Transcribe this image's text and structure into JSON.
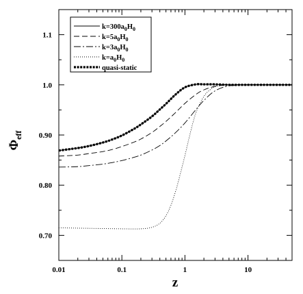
{
  "chart_data": {
    "type": "line",
    "title": "",
    "xlabel": "z",
    "ylabel": "Φ",
    "ylabel_sub": "eff",
    "xscale": "log",
    "xlim": [
      0.01,
      50
    ],
    "ylim": [
      0.65,
      1.15
    ],
    "grid": false,
    "legend_position": "top-left",
    "x_ticks": [
      {
        "value": 0.01,
        "label": "0.01"
      },
      {
        "value": 0.1,
        "label": "0.1"
      },
      {
        "value": 1,
        "label": "1"
      },
      {
        "value": 10,
        "label": "10"
      }
    ],
    "y_ticks": [
      {
        "value": 0.7,
        "label": "0.70"
      },
      {
        "value": 0.8,
        "label": "0.80"
      },
      {
        "value": 0.9,
        "label": "0.90"
      },
      {
        "value": 1.0,
        "label": "1.0"
      },
      {
        "value": 1.1,
        "label": "1.1"
      }
    ],
    "series": [
      {
        "name": "k=300a",
        "name_parts": [
          "k=300a",
          "0",
          "H",
          "0"
        ],
        "style": "solid",
        "color": "#000000",
        "x": [
          0.01,
          0.02,
          0.03,
          0.05,
          0.07,
          0.1,
          0.15,
          0.2,
          0.3,
          0.4,
          0.5,
          0.7,
          1.0,
          1.5,
          2,
          3,
          5,
          10,
          20,
          50
        ],
        "y": [
          0.869,
          0.874,
          0.878,
          0.885,
          0.891,
          0.899,
          0.911,
          0.921,
          0.937,
          0.951,
          0.962,
          0.98,
          0.995,
          1.001,
          1.001,
          1.001,
          1.0,
          1.0,
          1.0,
          1.0
        ]
      },
      {
        "name": "k=5a",
        "name_parts": [
          "k=5a",
          "0",
          "H",
          "0"
        ],
        "style": "dashed",
        "color": "#000000",
        "x": [
          0.01,
          0.02,
          0.03,
          0.05,
          0.07,
          0.1,
          0.15,
          0.2,
          0.3,
          0.4,
          0.5,
          0.7,
          1.0,
          1.5,
          2,
          3,
          5,
          10,
          20,
          50
        ],
        "y": [
          0.858,
          0.86,
          0.863,
          0.867,
          0.871,
          0.877,
          0.885,
          0.892,
          0.905,
          0.917,
          0.927,
          0.944,
          0.963,
          0.981,
          0.99,
          0.997,
          1.0,
          1.0,
          1.0,
          1.0
        ]
      },
      {
        "name": "k=3a",
        "name_parts": [
          "k=3a",
          "0",
          "H",
          "0"
        ],
        "style": "dash-dot",
        "color": "#000000",
        "x": [
          0.01,
          0.02,
          0.03,
          0.05,
          0.07,
          0.1,
          0.15,
          0.2,
          0.3,
          0.4,
          0.5,
          0.7,
          1.0,
          1.5,
          2,
          3,
          5,
          10,
          20,
          50
        ],
        "y": [
          0.836,
          0.837,
          0.839,
          0.842,
          0.845,
          0.849,
          0.855,
          0.86,
          0.87,
          0.879,
          0.888,
          0.904,
          0.924,
          0.951,
          0.969,
          0.988,
          0.998,
          1.0,
          1.0,
          1.0
        ]
      },
      {
        "name": "k=a",
        "name_parts": [
          "k=a",
          "0",
          "H",
          "0"
        ],
        "style": "dotted",
        "color": "#000000",
        "x": [
          0.01,
          0.03,
          0.1,
          0.2,
          0.3,
          0.4,
          0.5,
          0.6,
          0.7,
          0.8,
          1.0,
          1.2,
          1.5,
          2,
          2.5,
          3,
          4,
          5,
          10,
          50
        ],
        "y": [
          0.715,
          0.714,
          0.713,
          0.713,
          0.716,
          0.724,
          0.739,
          0.76,
          0.785,
          0.811,
          0.859,
          0.901,
          0.945,
          0.977,
          0.99,
          0.996,
          0.999,
          1.0,
          1.0,
          1.0
        ]
      },
      {
        "name": "quasi-static",
        "name_parts": [
          "quasi-static",
          "",
          "",
          ""
        ],
        "style": "thick-dotted",
        "color": "#000000",
        "x": [
          0.01,
          0.02,
          0.03,
          0.05,
          0.07,
          0.1,
          0.15,
          0.2,
          0.3,
          0.4,
          0.5,
          0.7,
          1.0,
          1.5,
          2,
          3,
          5,
          10,
          20,
          50
        ],
        "y": [
          0.869,
          0.874,
          0.878,
          0.885,
          0.891,
          0.899,
          0.911,
          0.921,
          0.937,
          0.951,
          0.962,
          0.98,
          0.995,
          1.001,
          1.001,
          1.001,
          1.0,
          1.0,
          1.0,
          1.0
        ]
      }
    ]
  }
}
